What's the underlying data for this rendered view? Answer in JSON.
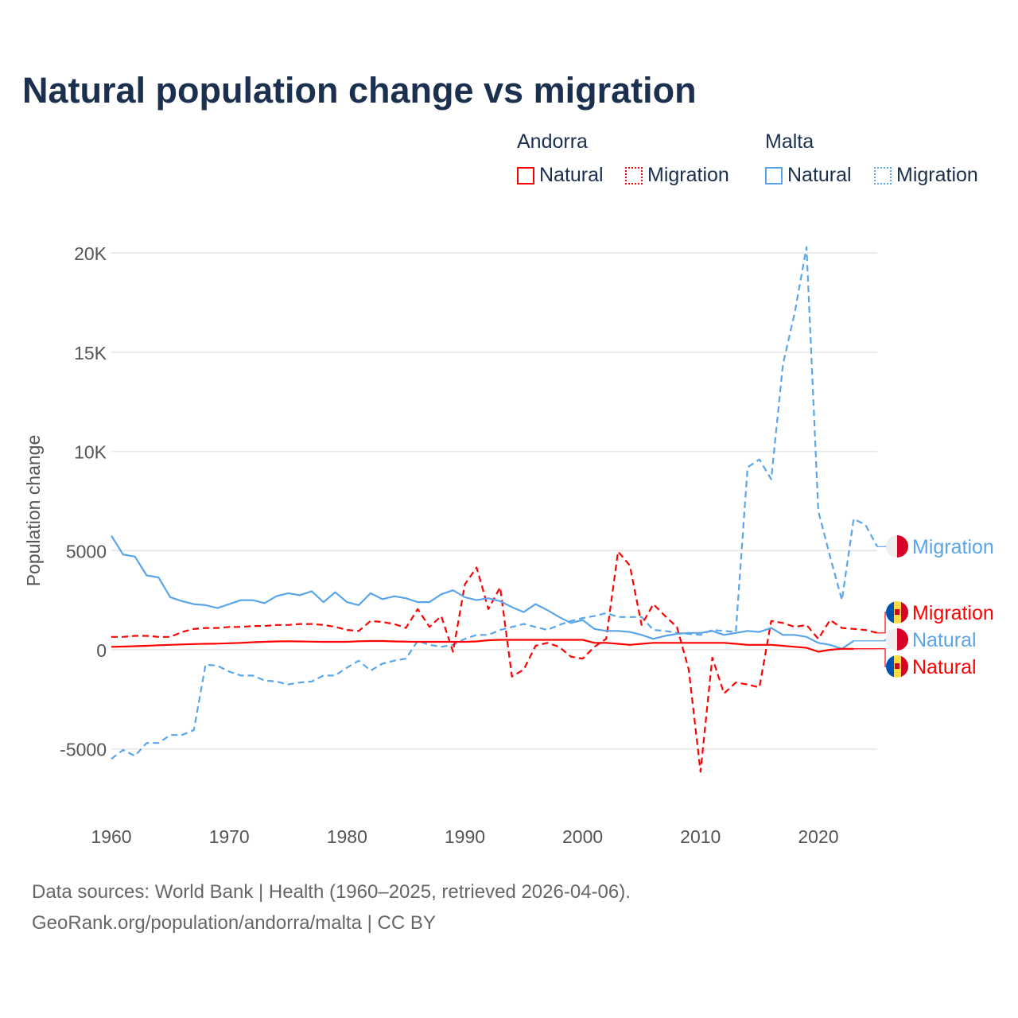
{
  "title": "Natural population change vs migration",
  "legend": {
    "groups": [
      {
        "name": "Andorra",
        "color": "#ff0000",
        "items": [
          "Natural",
          "Migration"
        ]
      },
      {
        "name": "Malta",
        "color": "#5aa5ea",
        "items": [
          "Natural",
          "Migration"
        ]
      }
    ]
  },
  "footer": {
    "line1": "Data sources: World Bank | Health (1960–2025, retrieved 2026-04-06).",
    "line2": "GeoRank.org/population/andorra/malta | CC BY"
  },
  "chart_data": {
    "type": "line",
    "title": "Natural population change vs migration",
    "xlabel": "",
    "ylabel": "Population change",
    "xlim": [
      1960,
      2025
    ],
    "ylim": [
      -6500,
      20500
    ],
    "x_ticks": [
      "1960",
      "1970",
      "1980",
      "1990",
      "2000",
      "2010",
      "2020"
    ],
    "y_ticks": [
      {
        "v": -5000,
        "label": "-5000"
      },
      {
        "v": 0,
        "label": "0"
      },
      {
        "v": 5000,
        "label": "5000"
      },
      {
        "v": 10000,
        "label": "10K"
      },
      {
        "v": 15000,
        "label": "15K"
      },
      {
        "v": 20000,
        "label": "20K"
      }
    ],
    "grid": true,
    "series": [
      {
        "name": "Malta Migration",
        "label": "Migration",
        "country": "Malta",
        "color": "#5aa5ea",
        "dashed": true,
        "start": 1960,
        "values": [
          -5500,
          -5050,
          -5350,
          -4700,
          -4700,
          -4300,
          -4300,
          -4050,
          -750,
          -800,
          -1100,
          -1300,
          -1300,
          -1550,
          -1600,
          -1750,
          -1650,
          -1600,
          -1300,
          -1300,
          -900,
          -550,
          -1050,
          -700,
          -550,
          -450,
          450,
          250,
          150,
          250,
          550,
          750,
          750,
          1000,
          1150,
          1300,
          1150,
          1000,
          1250,
          1450,
          1600,
          1700,
          1850,
          1650,
          1650,
          1650,
          1000,
          950,
          850,
          800,
          750,
          1000,
          950,
          900,
          9200,
          9600,
          8600,
          14400,
          17000,
          20300,
          7000,
          4700,
          2500,
          6600,
          6300,
          5200
        ]
      },
      {
        "name": "Andorra Migration",
        "label": "Migration",
        "country": "Andorra",
        "color": "#ff0000",
        "dashed": true,
        "start": 1960,
        "values": [
          650,
          650,
          700,
          700,
          650,
          650,
          900,
          1050,
          1100,
          1100,
          1150,
          1150,
          1200,
          1200,
          1250,
          1250,
          1300,
          1300,
          1250,
          1150,
          1000,
          950,
          1450,
          1400,
          1300,
          1100,
          2050,
          1150,
          1700,
          -100,
          3300,
          4150,
          2050,
          3150,
          -1350,
          -1000,
          200,
          350,
          150,
          -350,
          -450,
          150,
          550,
          4950,
          4250,
          1250,
          2300,
          1700,
          1150,
          -1000,
          -6150,
          -400,
          -2200,
          -1650,
          -1750,
          -1900,
          1450,
          1350,
          1150,
          1250,
          550,
          1500,
          1100,
          1050,
          1000,
          850
        ]
      },
      {
        "name": "Malta Natural",
        "label": "Natural",
        "country": "Malta",
        "color": "#5aa5ea",
        "dashed": false,
        "start": 1960,
        "values": [
          5750,
          4800,
          4700,
          3750,
          3650,
          2650,
          2450,
          2300,
          2250,
          2100,
          2300,
          2500,
          2500,
          2350,
          2700,
          2850,
          2750,
          2950,
          2400,
          2900,
          2400,
          2250,
          2850,
          2550,
          2700,
          2600,
          2400,
          2400,
          2800,
          3000,
          2650,
          2500,
          2600,
          2450,
          2150,
          1900,
          2300,
          2000,
          1650,
          1350,
          1500,
          1050,
          950,
          950,
          900,
          750,
          550,
          700,
          800,
          850,
          850,
          950,
          750,
          850,
          950,
          900,
          1100,
          750,
          750,
          650,
          350,
          250,
          50,
          450
        ]
      },
      {
        "name": "Andorra Natural",
        "label": "Natural",
        "country": "Andorra",
        "color": "#ff0000",
        "dashed": false,
        "start": 1960,
        "values": [
          150,
          160,
          180,
          200,
          230,
          250,
          270,
          290,
          300,
          310,
          330,
          350,
          380,
          400,
          420,
          430,
          420,
          410,
          400,
          400,
          400,
          430,
          440,
          440,
          420,
          410,
          400,
          400,
          400,
          400,
          400,
          420,
          480,
          500,
          500,
          500,
          500,
          500,
          500,
          500,
          500,
          350,
          350,
          300,
          250,
          300,
          350,
          350,
          350,
          350,
          350,
          350,
          350,
          300,
          250,
          250,
          250,
          200,
          150,
          100,
          -100,
          0,
          50,
          50
        ]
      }
    ]
  }
}
